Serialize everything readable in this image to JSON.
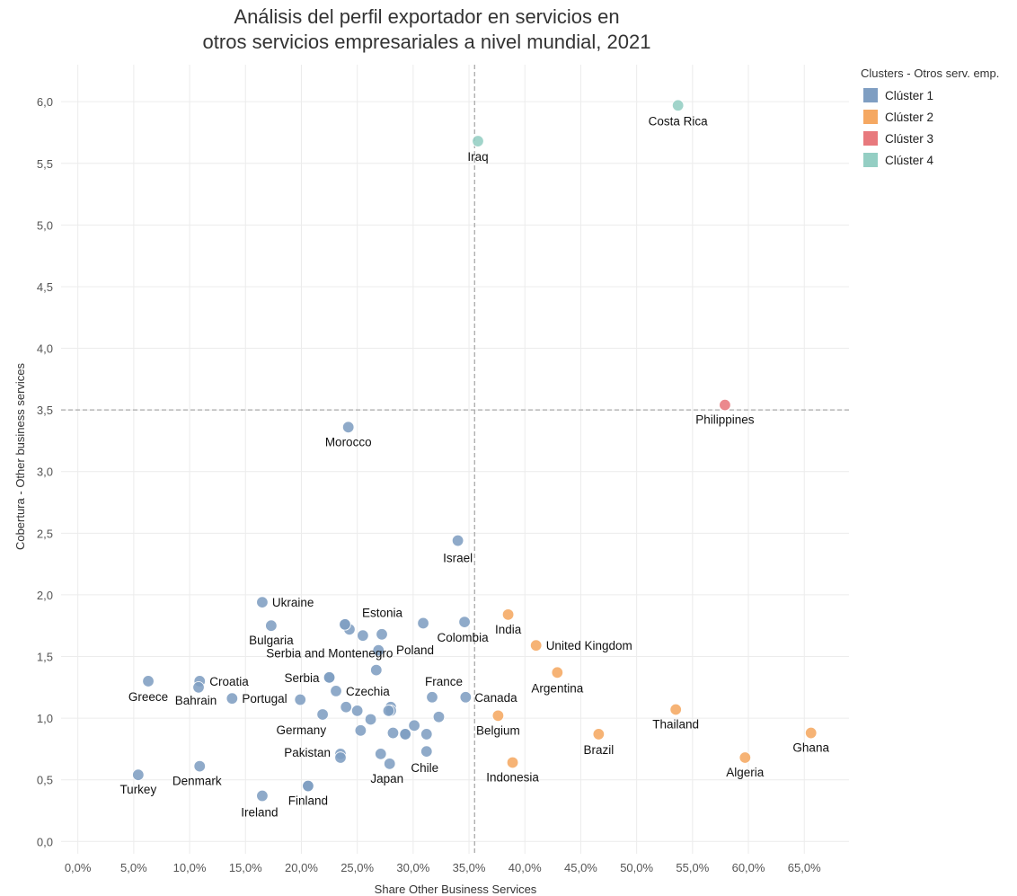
{
  "chart_data": {
    "type": "scatter",
    "title": "Análisis del perfil exportador en servicios en",
    "subtitle": "otros servicios empresariales a nivel mundial, 2021",
    "xlabel": "Share Other Business Services",
    "ylabel": "Cobertura - Other business services",
    "xlim": [
      -1.5,
      69
    ],
    "ylim": [
      -0.1,
      6.3
    ],
    "x_ticks": [
      "0,0%",
      "5,0%",
      "10,0%",
      "15,0%",
      "20,0%",
      "25,0%",
      "30,0%",
      "35,0%",
      "40,0%",
      "45,0%",
      "50,0%",
      "55,0%",
      "60,0%",
      "65,0%"
    ],
    "y_ticks": [
      "0,0",
      "0,5",
      "1,0",
      "1,5",
      "2,0",
      "2,5",
      "3,0",
      "3,5",
      "4,0",
      "4,5",
      "5,0",
      "5,5",
      "6,0"
    ],
    "reference_lines": {
      "x": 35.5,
      "y": 3.5
    },
    "grid": true,
    "legend": {
      "title": "Clusters - Otros serv. emp.",
      "position": "top-right",
      "items": [
        {
          "name": "Clúster 1",
          "color": "#7f9ec2"
        },
        {
          "name": "Clúster 2",
          "color": "#f5a862"
        },
        {
          "name": "Clúster 3",
          "color": "#e8797d"
        },
        {
          "name": "Clúster 4",
          "color": "#94cec3"
        }
      ]
    },
    "points": [
      {
        "label": "Costa Rica",
        "x": 53.7,
        "y": 5.97,
        "cluster": 4
      },
      {
        "label": "Iraq",
        "x": 35.8,
        "y": 5.68,
        "cluster": 4
      },
      {
        "label": "Philippines",
        "x": 57.9,
        "y": 3.54,
        "cluster": 3
      },
      {
        "label": "Morocco",
        "x": 24.2,
        "y": 3.36,
        "cluster": 1
      },
      {
        "label": "Israel",
        "x": 34.0,
        "y": 2.44,
        "cluster": 1
      },
      {
        "label": "Ukraine",
        "x": 16.5,
        "y": 1.94,
        "cluster": 1
      },
      {
        "label": "Bulgaria",
        "x": 17.3,
        "y": 1.75,
        "cluster": 1
      },
      {
        "label": "Estonia",
        "x": 24.3,
        "y": 1.72,
        "cluster": 1
      },
      {
        "label": "Poland",
        "x": 27.2,
        "y": 1.68,
        "cluster": 1
      },
      {
        "label": "Colombia",
        "x": 34.6,
        "y": 1.78,
        "cluster": 1
      },
      {
        "label": "India",
        "x": 38.5,
        "y": 1.84,
        "cluster": 2
      },
      {
        "label": "United Kingdom",
        "x": 41.0,
        "y": 1.59,
        "cluster": 2
      },
      {
        "label": "Argentina",
        "x": 42.9,
        "y": 1.37,
        "cluster": 2
      },
      {
        "label": "Serbia and Montenegro",
        "x": 26.7,
        "y": 1.39,
        "cluster": 1
      },
      {
        "label": "Serbia",
        "x": 22.5,
        "y": 1.33,
        "cluster": 1
      },
      {
        "label": "Croatia",
        "x": 10.9,
        "y": 1.3,
        "cluster": 1
      },
      {
        "label": "Greece",
        "x": 6.3,
        "y": 1.3,
        "cluster": 1
      },
      {
        "label": "Bahrain",
        "x": 10.8,
        "y": 1.25,
        "cluster": 1
      },
      {
        "label": "Czechia",
        "x": 23.1,
        "y": 1.22,
        "cluster": 1
      },
      {
        "label": "Portugal",
        "x": 13.8,
        "y": 1.16,
        "cluster": 1
      },
      {
        "label": "France",
        "x": 31.7,
        "y": 1.17,
        "cluster": 1
      },
      {
        "label": "Canada",
        "x": 34.7,
        "y": 1.17,
        "cluster": 1
      },
      {
        "label": "Thailand",
        "x": 53.5,
        "y": 1.07,
        "cluster": 2
      },
      {
        "label": "Germany",
        "x": 21.9,
        "y": 1.03,
        "cluster": 1
      },
      {
        "label": "Belgium",
        "x": 37.6,
        "y": 1.02,
        "cluster": 2
      },
      {
        "label": "Ghana",
        "x": 65.6,
        "y": 0.88,
        "cluster": 2
      },
      {
        "label": "Brazil",
        "x": 46.6,
        "y": 0.87,
        "cluster": 2
      },
      {
        "label": "Pakistan",
        "x": 23.5,
        "y": 0.71,
        "cluster": 1
      },
      {
        "label": "Chile",
        "x": 31.2,
        "y": 0.73,
        "cluster": 1
      },
      {
        "label": "Japan",
        "x": 27.9,
        "y": 0.63,
        "cluster": 1
      },
      {
        "label": "Indonesia",
        "x": 38.9,
        "y": 0.64,
        "cluster": 2
      },
      {
        "label": "Algeria",
        "x": 59.7,
        "y": 0.68,
        "cluster": 2
      },
      {
        "label": "Denmark",
        "x": 10.9,
        "y": 0.61,
        "cluster": 1
      },
      {
        "label": "Turkey",
        "x": 5.4,
        "y": 0.54,
        "cluster": 1
      },
      {
        "label": "Finland",
        "x": 20.6,
        "y": 0.45,
        "cluster": 1
      },
      {
        "label": "Ireland",
        "x": 16.5,
        "y": 0.37,
        "cluster": 1
      },
      {
        "label": "",
        "x": 23.9,
        "y": 1.76,
        "cluster": 1
      },
      {
        "label": "",
        "x": 23.9,
        "y": 1.76,
        "cluster": 1
      },
      {
        "label": "",
        "x": 25.5,
        "y": 1.67,
        "cluster": 1
      },
      {
        "label": "",
        "x": 30.9,
        "y": 1.77,
        "cluster": 1
      },
      {
        "label": "",
        "x": 26.9,
        "y": 1.55,
        "cluster": 1
      },
      {
        "label": "",
        "x": 22.5,
        "y": 1.33,
        "cluster": 1
      },
      {
        "label": "",
        "x": 19.9,
        "y": 1.15,
        "cluster": 1
      },
      {
        "label": "",
        "x": 24.0,
        "y": 1.09,
        "cluster": 1
      },
      {
        "label": "",
        "x": 25.0,
        "y": 1.06,
        "cluster": 1
      },
      {
        "label": "",
        "x": 28.0,
        "y": 1.09,
        "cluster": 1
      },
      {
        "label": "",
        "x": 28.0,
        "y": 1.06,
        "cluster": 1
      },
      {
        "label": "",
        "x": 27.8,
        "y": 1.06,
        "cluster": 1
      },
      {
        "label": "",
        "x": 26.2,
        "y": 0.99,
        "cluster": 1
      },
      {
        "label": "",
        "x": 30.1,
        "y": 0.94,
        "cluster": 1
      },
      {
        "label": "",
        "x": 32.3,
        "y": 1.01,
        "cluster": 1
      },
      {
        "label": "",
        "x": 25.3,
        "y": 0.9,
        "cluster": 1
      },
      {
        "label": "",
        "x": 28.2,
        "y": 0.88,
        "cluster": 1
      },
      {
        "label": "",
        "x": 29.3,
        "y": 0.87,
        "cluster": 1
      },
      {
        "label": "",
        "x": 29.3,
        "y": 0.87,
        "cluster": 1
      },
      {
        "label": "",
        "x": 31.2,
        "y": 0.87,
        "cluster": 1
      },
      {
        "label": "",
        "x": 27.1,
        "y": 0.71,
        "cluster": 1
      },
      {
        "label": "",
        "x": 23.5,
        "y": 0.68,
        "cluster": 1
      },
      {
        "label": "",
        "x": 20.6,
        "y": 0.45,
        "cluster": 1
      }
    ]
  }
}
